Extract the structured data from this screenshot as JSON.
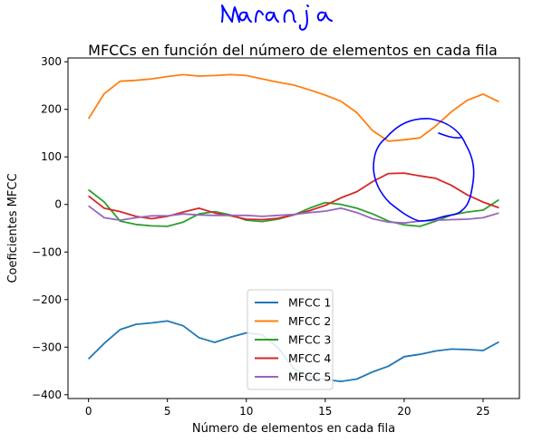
{
  "annotation_text": "naranja",
  "chart_data": {
    "type": "line",
    "title": "MFCCs en función del número de elementos en cada fila",
    "xlabel": "Número de elementos en cada fila",
    "ylabel": "Coeficientes MFCC",
    "xlim": [
      -1.3,
      27.3
    ],
    "ylim": [
      -408,
      308
    ],
    "xticks": [
      0,
      5,
      10,
      15,
      20,
      25
    ],
    "yticks": [
      -400,
      -300,
      -200,
      -100,
      0,
      100,
      200,
      300
    ],
    "grid": false,
    "legend_position": "lower-center",
    "x": [
      0,
      1,
      2,
      3,
      4,
      5,
      6,
      7,
      8,
      9,
      10,
      11,
      12,
      13,
      14,
      15,
      16,
      17,
      18,
      19,
      20,
      21,
      22,
      23,
      24,
      25,
      26
    ],
    "series": [
      {
        "name": "MFCC 1",
        "color": "#1f77b4",
        "values": [
          -325,
          -292,
          -263,
          -252,
          -249,
          -245,
          -255,
          -280,
          -290,
          -279,
          -270,
          -274,
          -301,
          -345,
          -362,
          -368,
          -372,
          -367,
          -352,
          -340,
          -320,
          -315,
          -308,
          -304,
          -305,
          -307,
          -289
        ]
      },
      {
        "name": "MFCC 2",
        "color": "#ff7f0e",
        "values": [
          180,
          233,
          259,
          261,
          264,
          269,
          273,
          270,
          271,
          273,
          271,
          264,
          257,
          251,
          241,
          230,
          217,
          193,
          155,
          133,
          136,
          140,
          165,
          195,
          219,
          232,
          216
        ]
      },
      {
        "name": "MFCC 3",
        "color": "#2ca02c",
        "values": [
          31,
          5,
          -35,
          -42,
          -45,
          -46,
          -37,
          -20,
          -15,
          -22,
          -33,
          -36,
          -31,
          -22,
          -8,
          4,
          0,
          -8,
          -20,
          -35,
          -43,
          -46,
          -35,
          -22,
          -16,
          -12,
          10
        ]
      },
      {
        "name": "MFCC 4",
        "color": "#d62728",
        "values": [
          18,
          -8,
          -15,
          -25,
          -30,
          -25,
          -16,
          -8,
          -18,
          -24,
          -31,
          -32,
          -29,
          -22,
          -13,
          -2,
          14,
          27,
          48,
          65,
          66,
          60,
          55,
          40,
          20,
          5,
          -7
        ]
      },
      {
        "name": "MFCC 5",
        "color": "#9467bd",
        "values": [
          -3,
          -28,
          -33,
          -28,
          -24,
          -24,
          -20,
          -22,
          -23,
          -23,
          -23,
          -25,
          -23,
          -21,
          -17,
          -14,
          -8,
          -17,
          -30,
          -37,
          -39,
          -35,
          -33,
          -32,
          -31,
          -28,
          -18
        ]
      }
    ],
    "overlay": {
      "type": "hand-drawn-circle",
      "color": "#0000ff",
      "around": "MFCC 2 and MFCC 4 near x=18 to 25"
    }
  }
}
